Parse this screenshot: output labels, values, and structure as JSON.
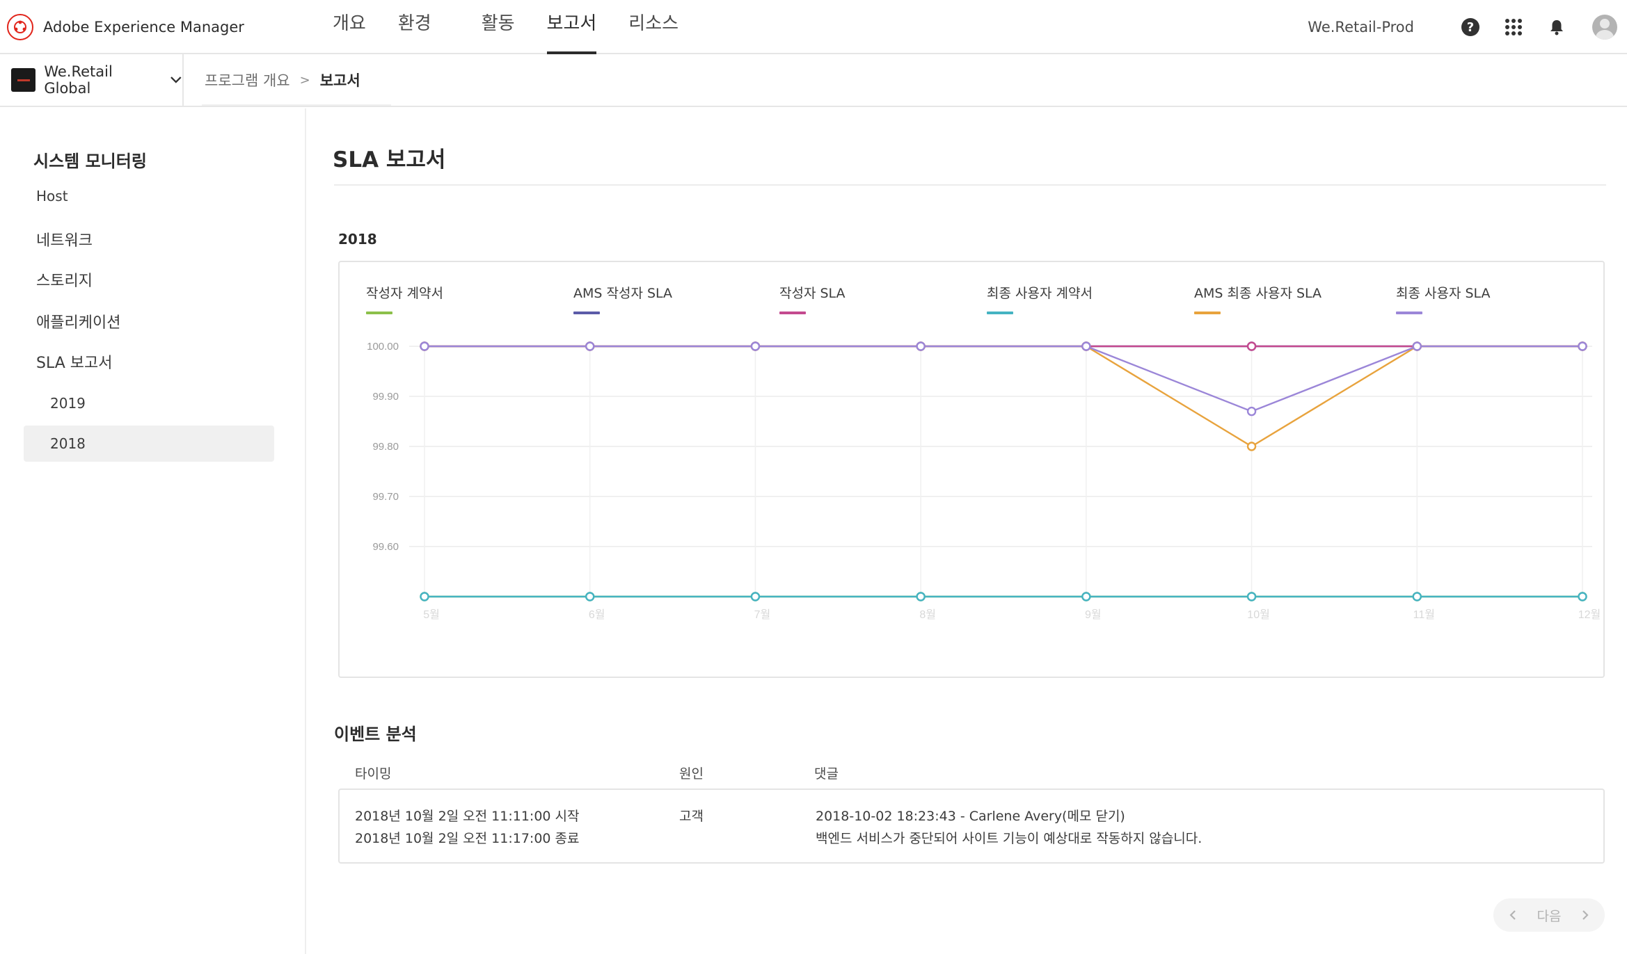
{
  "app": {
    "name": "Adobe Experience Manager",
    "environment": "We.Retail-Prod"
  },
  "nav": {
    "tabs": [
      {
        "label": "개요",
        "active": false
      },
      {
        "label": "환경",
        "active": false
      },
      {
        "label": "활동",
        "active": false
      },
      {
        "label": "보고서",
        "active": true
      },
      {
        "label": "리소스",
        "active": false
      }
    ]
  },
  "header_icons": [
    "help-icon",
    "apps-grid-icon",
    "notification-bell-icon",
    "user-avatar-icon"
  ],
  "org": {
    "name": "We.Retail Global"
  },
  "breadcrumb": {
    "parent": "프로그램 개요",
    "separator": ">",
    "current": "보고서"
  },
  "sidebar": {
    "title": "시스템 모니터링",
    "items": [
      {
        "label": "Host"
      },
      {
        "label": "네트워크"
      },
      {
        "label": "스토리지"
      },
      {
        "label": "애플리케이션"
      },
      {
        "label": "SLA 보고서"
      }
    ],
    "sub_items": [
      {
        "label": "2019",
        "selected": false
      },
      {
        "label": "2018",
        "selected": true
      }
    ]
  },
  "main": {
    "title": "SLA 보고서",
    "year_label": "2018"
  },
  "chart_data": {
    "type": "line",
    "categories": [
      "5월",
      "6월",
      "7월",
      "8월",
      "9월",
      "10월",
      "11월",
      "12월"
    ],
    "y_ticks": [
      "100.00",
      "99.90",
      "99.80",
      "99.70",
      "99.60"
    ],
    "ylim": [
      99.5,
      100.0
    ],
    "grid": true,
    "legend_position": "top",
    "series": [
      {
        "name": "작성자 계약서",
        "color": "#8cc04a",
        "values": [
          99.5,
          99.5,
          99.5,
          99.5,
          99.5,
          99.5,
          99.5,
          99.5
        ]
      },
      {
        "name": "AMS 작성자 SLA",
        "color": "#5b5ba8",
        "values": [
          100.0,
          100.0,
          100.0,
          100.0,
          100.0,
          100.0,
          100.0,
          100.0
        ]
      },
      {
        "name": "작성자 SLA",
        "color": "#c44a8f",
        "values": [
          100.0,
          100.0,
          100.0,
          100.0,
          100.0,
          100.0,
          100.0,
          100.0
        ]
      },
      {
        "name": "최종 사용자 계약서",
        "color": "#45b3c2",
        "values": [
          99.5,
          99.5,
          99.5,
          99.5,
          99.5,
          99.5,
          99.5,
          99.5
        ]
      },
      {
        "name": "AMS 최종 사용자 SLA",
        "color": "#e8a33d",
        "values": [
          100.0,
          100.0,
          100.0,
          100.0,
          100.0,
          99.8,
          100.0,
          100.0
        ]
      },
      {
        "name": "최종 사용자 SLA",
        "color": "#9b86d8",
        "values": [
          100.0,
          100.0,
          100.0,
          100.0,
          100.0,
          99.87,
          100.0,
          100.0
        ]
      }
    ]
  },
  "events": {
    "title": "이벤트 분석",
    "columns": [
      "타이밍",
      "원인",
      "댓글"
    ],
    "rows": [
      {
        "timing_start": "2018년 10월 2일 오전 11:11:00 시작",
        "timing_end": "2018년 10월 2일 오전 11:17:00 종료",
        "cause": "고객",
        "comment_header": "2018-10-02 18:23:43 - Carlene Avery(메모 닫기)",
        "comment_body": "백엔드 서비스가 중단되어 사이트 기능이 예상대로 작동하지 않습니다."
      }
    ]
  },
  "pager": {
    "next_label": "다음"
  }
}
